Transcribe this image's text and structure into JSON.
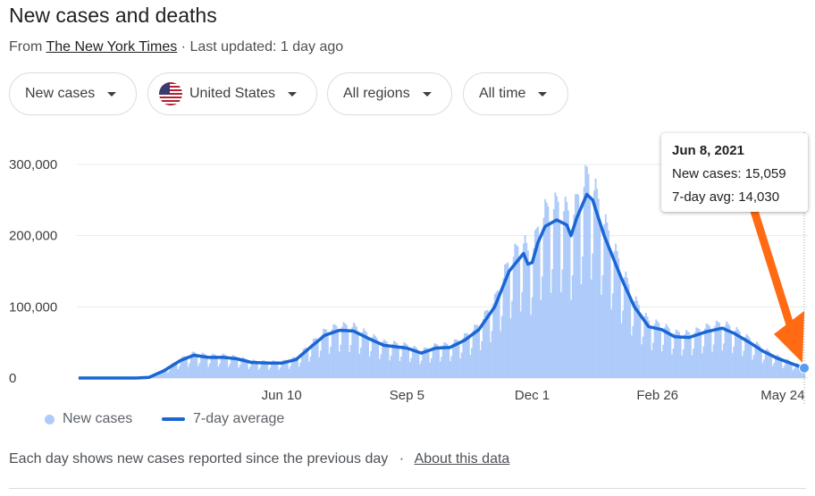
{
  "header": {
    "title": "New cases and deaths",
    "source_prefix": "From ",
    "source_link": "The New York Times",
    "updated": " · Last updated: 1 day ago"
  },
  "filters": {
    "metric": "New cases",
    "location": "United States",
    "region": "All regions",
    "period": "All time"
  },
  "tooltip": {
    "date": "Jun 8, 2021",
    "cases_line": "New cases: 15,059",
    "avg_line": "7-day avg: 14,030"
  },
  "legend": {
    "bars": "New cases",
    "line": "7-day average"
  },
  "footnote": {
    "text": "Each day shows new cases reported since the previous day",
    "sep": "·",
    "link": "About this data"
  },
  "colors": {
    "bars": "#aecbfa",
    "line": "#1a66d2",
    "annotation_arrow": "#ff6a13",
    "grid": "#e8eaed"
  },
  "chart_data": {
    "type": "bar",
    "subtype": "bar + 7-day-average line",
    "x_start": "2020-01-21",
    "x_end": "2021-06-08",
    "ylim": [
      0,
      300000
    ],
    "y_ticks": [
      {
        "value": 0,
        "label": "0"
      },
      {
        "value": 100000,
        "label": "100,000"
      },
      {
        "value": 200000,
        "label": "200,000"
      },
      {
        "value": 300000,
        "label": "300,000"
      }
    ],
    "x_ticks": [
      {
        "date": "2020-06-10",
        "label": "Jun 10"
      },
      {
        "date": "2020-09-05",
        "label": "Sep 5"
      },
      {
        "date": "2020-12-01",
        "label": "Dec 1"
      },
      {
        "date": "2021-02-26",
        "label": "Feb 26"
      },
      {
        "date": "2021-05-24",
        "label": "May 24"
      }
    ],
    "series": [
      {
        "name": "7-day average",
        "points": [
          [
            "2020-01-21",
            0
          ],
          [
            "2020-03-01",
            0
          ],
          [
            "2020-03-10",
            1000
          ],
          [
            "2020-03-20",
            10000
          ],
          [
            "2020-04-01",
            25000
          ],
          [
            "2020-04-10",
            32000
          ],
          [
            "2020-04-20",
            29000
          ],
          [
            "2020-05-01",
            29000
          ],
          [
            "2020-05-10",
            27000
          ],
          [
            "2020-05-20",
            22000
          ],
          [
            "2020-06-01",
            21000
          ],
          [
            "2020-06-10",
            21000
          ],
          [
            "2020-06-20",
            26000
          ],
          [
            "2020-07-01",
            45000
          ],
          [
            "2020-07-10",
            60000
          ],
          [
            "2020-07-20",
            67000
          ],
          [
            "2020-07-30",
            66000
          ],
          [
            "2020-08-10",
            55000
          ],
          [
            "2020-08-20",
            46000
          ],
          [
            "2020-09-05",
            42000
          ],
          [
            "2020-09-15",
            35000
          ],
          [
            "2020-09-25",
            42000
          ],
          [
            "2020-10-05",
            43000
          ],
          [
            "2020-10-15",
            53000
          ],
          [
            "2020-10-25",
            68000
          ],
          [
            "2020-11-05",
            100000
          ],
          [
            "2020-11-15",
            150000
          ],
          [
            "2020-11-25",
            175000
          ],
          [
            "2020-11-28",
            160000
          ],
          [
            "2020-12-01",
            162000
          ],
          [
            "2020-12-05",
            190000
          ],
          [
            "2020-12-10",
            213000
          ],
          [
            "2020-12-18",
            222000
          ],
          [
            "2020-12-25",
            215000
          ],
          [
            "2020-12-28",
            200000
          ],
          [
            "2021-01-01",
            225000
          ],
          [
            "2021-01-08",
            258000
          ],
          [
            "2021-01-12",
            250000
          ],
          [
            "2021-01-20",
            200000
          ],
          [
            "2021-02-01",
            140000
          ],
          [
            "2021-02-10",
            100000
          ],
          [
            "2021-02-20",
            72000
          ],
          [
            "2021-03-01",
            68000
          ],
          [
            "2021-03-10",
            58000
          ],
          [
            "2021-03-20",
            57000
          ],
          [
            "2021-04-01",
            65000
          ],
          [
            "2021-04-12",
            70000
          ],
          [
            "2021-04-20",
            63000
          ],
          [
            "2021-05-01",
            50000
          ],
          [
            "2021-05-10",
            38000
          ],
          [
            "2021-05-20",
            28000
          ],
          [
            "2021-06-01",
            19000
          ],
          [
            "2021-06-08",
            14030
          ]
        ]
      }
    ],
    "highlight": {
      "date": "2021-06-08",
      "new_cases": 15059,
      "avg": 14030
    },
    "legend_placement": "bottom-left",
    "grid": true
  }
}
